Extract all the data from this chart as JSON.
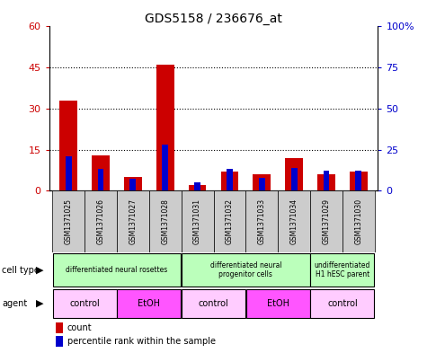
{
  "title": "GDS5158 / 236676_at",
  "samples": [
    "GSM1371025",
    "GSM1371026",
    "GSM1371027",
    "GSM1371028",
    "GSM1371031",
    "GSM1371032",
    "GSM1371033",
    "GSM1371034",
    "GSM1371029",
    "GSM1371030"
  ],
  "red_values": [
    33,
    13,
    5,
    46,
    2,
    7,
    6,
    12,
    6,
    7
  ],
  "blue_values": [
    21,
    13,
    7,
    28,
    5,
    13,
    8,
    14,
    12,
    12
  ],
  "ylim_left": [
    0,
    60
  ],
  "ylim_right": [
    0,
    100
  ],
  "yticks_left": [
    0,
    15,
    30,
    45,
    60
  ],
  "yticks_right": [
    0,
    25,
    50,
    75,
    100
  ],
  "ytick_labels_left": [
    "0",
    "15",
    "30",
    "45",
    "60"
  ],
  "ytick_labels_right": [
    "0",
    "25",
    "50",
    "75",
    "100%"
  ],
  "cell_group_starts": [
    0,
    4,
    8
  ],
  "cell_group_ends": [
    4,
    8,
    10
  ],
  "cell_labels": [
    "differentiated neural rosettes",
    "differentiated neural\nprogenitor cells",
    "undifferentiated\nH1 hESC parent"
  ],
  "agent_starts": [
    0,
    2,
    4,
    6,
    8
  ],
  "agent_ends": [
    2,
    4,
    6,
    8,
    10
  ],
  "agent_labels": [
    "control",
    "EtOH",
    "control",
    "EtOH",
    "control"
  ],
  "agent_colors": [
    "#ffccff",
    "#ff55ff",
    "#ffccff",
    "#ff55ff",
    "#ffccff"
  ],
  "cell_color": "#bbffbb",
  "sample_bg_color": "#cccccc",
  "red_color": "#cc0000",
  "blue_color": "#0000cc",
  "left_axis_color": "#cc0000",
  "right_axis_color": "#0000cc",
  "legend_count_label": "count",
  "legend_percentile_label": "percentile rank within the sample"
}
